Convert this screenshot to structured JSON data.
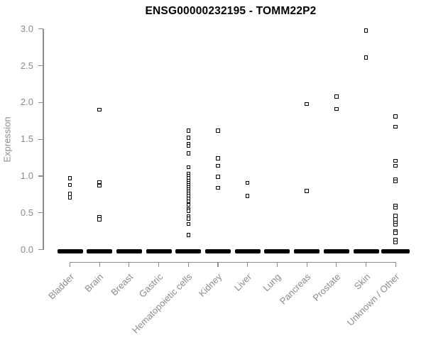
{
  "figure": {
    "title": "ENSG00000232195 - TOMM22P2",
    "colors": {
      "axis": "#8c8c8c",
      "tick_text": "#8c8c8c",
      "title_text": "#000000",
      "marker": "#000000",
      "background": "#ffffff"
    }
  },
  "chart_data": {
    "type": "scatter",
    "subtype": "strip-plot",
    "title": "ENSG00000232195 - TOMM22P2",
    "xlabel": "",
    "ylabel": "Expression",
    "ylim": [
      0,
      3.0
    ],
    "yticks": [
      0,
      0.5,
      1.0,
      1.5,
      2.0,
      2.5,
      3.0
    ],
    "ytick_labels": [
      "0.0",
      "0.5",
      "1.0",
      "1.5",
      "2.0",
      "2.5",
      "3.0"
    ],
    "grid": false,
    "legend": false,
    "marker": "open-square",
    "categories": [
      "Bladder",
      "Brain",
      "Breast",
      "Gastric",
      "Hematopoietic cells",
      "Kidney",
      "Liver",
      "Lung",
      "Pancreas",
      "Prostate",
      "Skin",
      "Unknown / Other"
    ],
    "series": [
      {
        "category": "Bladder",
        "zero_cluster": true,
        "values": [
          0.97,
          0.88,
          0.76,
          0.71
        ]
      },
      {
        "category": "Brain",
        "zero_cluster": true,
        "values": [
          1.9,
          0.92,
          0.87,
          0.44,
          0.41
        ]
      },
      {
        "category": "Breast",
        "zero_cluster": true,
        "values": []
      },
      {
        "category": "Gastric",
        "zero_cluster": true,
        "values": []
      },
      {
        "category": "Hematopoietic cells",
        "zero_cluster": true,
        "values": [
          1.62,
          1.52,
          1.44,
          1.41,
          1.31,
          1.12,
          1.03,
          1.0,
          0.97,
          0.94,
          0.91,
          0.88,
          0.85,
          0.82,
          0.79,
          0.76,
          0.73,
          0.69,
          0.66,
          0.61,
          0.55,
          0.53,
          0.45,
          0.42,
          0.35,
          0.2
        ]
      },
      {
        "category": "Kidney",
        "zero_cluster": true,
        "values": [
          1.62,
          1.24,
          1.14,
          0.99,
          0.84
        ]
      },
      {
        "category": "Liver",
        "zero_cluster": true,
        "values": [
          0.91,
          0.73
        ]
      },
      {
        "category": "Lung",
        "zero_cluster": true,
        "values": []
      },
      {
        "category": "Pancreas",
        "zero_cluster": true,
        "values": [
          1.98,
          0.8
        ]
      },
      {
        "category": "Prostate",
        "zero_cluster": true,
        "values": [
          2.08,
          1.91
        ]
      },
      {
        "category": "Skin",
        "zero_cluster": true,
        "values": [
          2.98,
          2.61
        ]
      },
      {
        "category": "Unknown / Other",
        "zero_cluster": true,
        "values": [
          1.81,
          1.67,
          1.21,
          1.14,
          0.95,
          0.93,
          0.6,
          0.57,
          0.46,
          0.41,
          0.37,
          0.34,
          0.25,
          0.23,
          0.13,
          0.1
        ]
      }
    ]
  }
}
